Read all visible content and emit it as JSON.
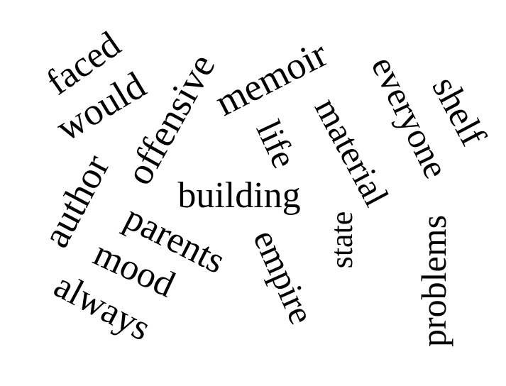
{
  "canvas": {
    "background": "#ffffff",
    "text_color": "#000000"
  },
  "words": {
    "faced": "faced",
    "would": "would",
    "offensive": "offensive",
    "memoir": "memoir",
    "everyone": "everyone",
    "shelf": "shelf",
    "life": "life",
    "material": "material",
    "author": "author",
    "building": "building",
    "parents": "parents",
    "mood": "mood",
    "always": "always",
    "empire": "empire",
    "state": "state",
    "problems": "problems"
  }
}
